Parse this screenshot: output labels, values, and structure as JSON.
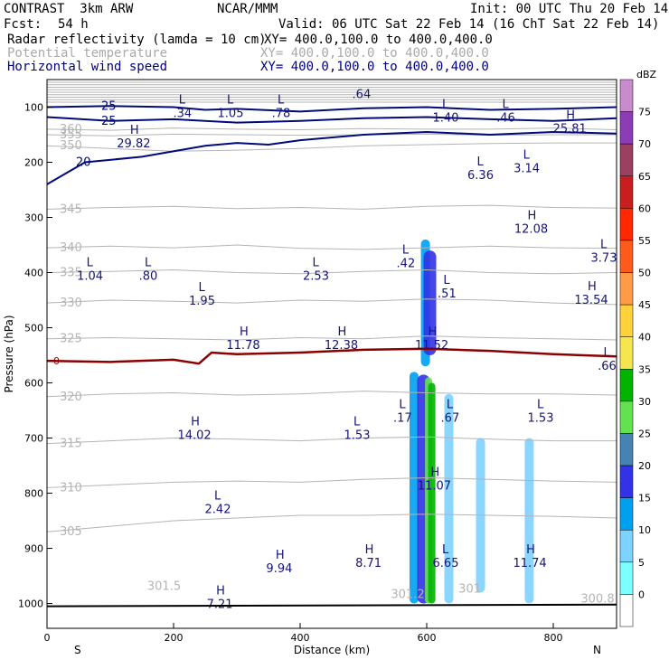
{
  "header": {
    "model": "CONTRAST  3km ARW",
    "org": "NCAR/MMM",
    "init": "Init: 00 UTC Thu 20 Feb 14",
    "fcst_label": "Fcst:",
    "fcst_value": "54 h",
    "valid": "Valid: 06 UTC Sat 22 Feb 14 (16 ChT Sat 22 Feb 14)",
    "field1": "Radar reflectivity (lamda = 10 cm)",
    "field1_xy": "XY= 400.0,100.0 to 400.0,400.0",
    "field2": "Potential temperature",
    "field2_xy": "XY= 400.0,100.0 to 400.0,400.0",
    "field3": "Horizontal wind speed",
    "field3_xy": "XY= 400.0,100.0 to 400.0,400.0"
  },
  "colors": {
    "theta": "#b4b4b4",
    "wind": "#000a78",
    "zero": "#8b0000",
    "label_blue": "#14147a"
  },
  "chart_data": {
    "type": "cross-section",
    "xlabel": "Distance (km)",
    "ylabel": "Pressure (hPa)",
    "xlim": [
      0,
      900
    ],
    "ylim": [
      1045,
      50
    ],
    "x_ticks": [
      0,
      200,
      400,
      600,
      800
    ],
    "x_tick_labels": [
      "0",
      "200",
      "400",
      "600",
      "800"
    ],
    "y_ticks": [
      100,
      200,
      300,
      400,
      500,
      600,
      700,
      800,
      900,
      1000
    ],
    "y_tick_labels": [
      "100",
      "200",
      "300",
      "400",
      "500",
      "600",
      "700",
      "800",
      "900",
      "1000"
    ],
    "end_labels": [
      "S",
      "N"
    ],
    "colorbar": {
      "unit": "dBZ",
      "levels": [
        "75",
        "70",
        "65",
        "60",
        "55",
        "50",
        "45",
        "40",
        "35",
        "30",
        "25",
        "20",
        "15",
        "10",
        "5",
        "0"
      ],
      "colors": [
        "#c88ccc",
        "#8c3cb4",
        "#9a4060",
        "#c81e1e",
        "#ff2800",
        "#ff5a1e",
        "#ff9b46",
        "#ffd23c",
        "#f5e650",
        "#00b400",
        "#64e150",
        "#4682b4",
        "#3232e6",
        "#00a0f0",
        "#7dd2ff",
        "#7dffff",
        "#ffffff"
      ]
    },
    "theta_contours": [
      {
        "label": "360",
        "p": [
          140,
          142,
          138,
          140,
          141,
          139,
          140,
          140,
          138,
          141
        ]
      },
      {
        "label": "355",
        "p": [
          150,
          152,
          149,
          150,
          151,
          150,
          149,
          151,
          150,
          150
        ]
      },
      {
        "label": "350",
        "p": [
          170,
          175,
          180,
          178,
          175,
          170,
          168,
          166,
          165,
          165
        ]
      },
      {
        "label": "345",
        "p": [
          285,
          282,
          280,
          284,
          282,
          285,
          280,
          278,
          282,
          283
        ]
      },
      {
        "label": "340",
        "p": [
          355,
          352,
          355,
          350,
          356,
          358,
          355,
          352,
          355,
          356
        ]
      },
      {
        "label": "335",
        "p": [
          400,
          398,
          395,
          400,
          402,
          398,
          395,
          400,
          402,
          400
        ]
      },
      {
        "label": "330",
        "p": [
          455,
          450,
          452,
          455,
          450,
          452,
          448,
          450,
          455,
          458
        ]
      },
      {
        "label": "325",
        "p": [
          520,
          518,
          520,
          522,
          518,
          520,
          515,
          518,
          520,
          522
        ]
      },
      {
        "label": "320",
        "p": [
          625,
          620,
          618,
          622,
          620,
          615,
          618,
          620,
          620,
          622
        ]
      },
      {
        "label": "315",
        "p": [
          710,
          705,
          700,
          702,
          705,
          700,
          698,
          702,
          705,
          705
        ]
      },
      {
        "label": "310",
        "p": [
          790,
          785,
          780,
          778,
          780,
          775,
          772,
          775,
          778,
          780
        ]
      },
      {
        "label": "305",
        "p": [
          870,
          860,
          850,
          845,
          840,
          840,
          838,
          840,
          842,
          845
        ]
      }
    ],
    "wind_contours": [
      {
        "label": "25",
        "x": [
          0,
          100,
          200,
          250,
          300,
          400,
          500,
          600,
          700,
          800,
          900
        ],
        "p": [
          100,
          98,
          100,
          105,
          103,
          108,
          102,
          100,
          105,
          103,
          100
        ]
      },
      {
        "label": "25",
        "x": [
          0,
          100,
          200,
          300,
          400,
          500,
          600,
          700,
          800,
          900
        ],
        "p": [
          118,
          125,
          122,
          128,
          125,
          120,
          118,
          122,
          125,
          120
        ]
      },
      {
        "label": "20",
        "x": [
          0,
          60,
          150,
          250,
          300,
          350,
          400,
          500,
          600,
          700,
          800,
          900
        ],
        "p": [
          240,
          200,
          190,
          170,
          165,
          168,
          160,
          150,
          145,
          150,
          145,
          148
        ]
      }
    ],
    "zero_contour": {
      "label": "0",
      "x": [
        0,
        100,
        200,
        240,
        260,
        300,
        400,
        500,
        600,
        700,
        800,
        900
      ],
      "p": [
        560,
        562,
        558,
        565,
        545,
        548,
        545,
        540,
        538,
        542,
        548,
        552
      ]
    },
    "reflectivity_columns": [
      {
        "x": 598,
        "p_top": 340,
        "p_bot": 570,
        "dbz": 10
      },
      {
        "x": 605,
        "p_top": 360,
        "p_bot": 550,
        "dbz": 15
      },
      {
        "x": 580,
        "p_top": 580,
        "p_bot": 1000,
        "dbz": 10
      },
      {
        "x": 595,
        "p_top": 585,
        "p_bot": 1000,
        "dbz": 15
      },
      {
        "x": 603,
        "p_top": 590,
        "p_bot": 1000,
        "dbz": 25
      },
      {
        "x": 608,
        "p_top": 600,
        "p_bot": 1000,
        "dbz": 30
      },
      {
        "x": 635,
        "p_top": 620,
        "p_bot": 1000,
        "dbz": 5
      },
      {
        "x": 685,
        "p_top": 700,
        "p_bot": 980,
        "dbz": 5
      },
      {
        "x": 762,
        "p_top": 700,
        "p_bot": 1000,
        "dbz": 5
      }
    ],
    "annotations": [
      {
        "kind": "L",
        "value": ".34",
        "x": 214,
        "p": 110
      },
      {
        "kind": "L",
        "value": "1.05",
        "x": 290,
        "p": 110
      },
      {
        "kind": "L",
        "value": ".78",
        "x": 370,
        "p": 110
      },
      {
        "kind": "",
        "value": ".64",
        "x": 497,
        "p": 75
      },
      {
        "kind": "L",
        "value": "1.40",
        "x": 630,
        "p": 118
      },
      {
        "kind": "L",
        "value": ".46",
        "x": 725,
        "p": 118
      },
      {
        "kind": "H",
        "value": "29.82",
        "x": 137,
        "p": 165
      },
      {
        "kind": "H",
        "value": "25.81",
        "x": 826,
        "p": 138
      },
      {
        "kind": "L",
        "value": "6.36",
        "x": 685,
        "p": 222
      },
      {
        "kind": "L",
        "value": "3.14",
        "x": 758,
        "p": 210
      },
      {
        "kind": "H",
        "value": "12.08",
        "x": 765,
        "p": 320
      },
      {
        "kind": "L",
        "value": "3.73",
        "x": 880,
        "p": 372
      },
      {
        "kind": "L",
        "value": "1.04",
        "x": 68,
        "p": 405
      },
      {
        "kind": "L",
        "value": ".80",
        "x": 160,
        "p": 405
      },
      {
        "kind": "L",
        "value": "1.95",
        "x": 245,
        "p": 450
      },
      {
        "kind": "L",
        "value": "2.53",
        "x": 425,
        "p": 405
      },
      {
        "kind": "L",
        "value": ".42",
        "x": 567,
        "p": 382
      },
      {
        "kind": "L",
        "value": ".51",
        "x": 632,
        "p": 437
      },
      {
        "kind": "H",
        "value": "13.54",
        "x": 860,
        "p": 448
      },
      {
        "kind": "H",
        "value": "11.78",
        "x": 310,
        "p": 530
      },
      {
        "kind": "H",
        "value": "12.38",
        "x": 465,
        "p": 530
      },
      {
        "kind": "H",
        "value": "11.52",
        "x": 608,
        "p": 530
      },
      {
        "kind": "L",
        "value": ".66",
        "x": 885,
        "p": 568
      },
      {
        "kind": "L",
        "value": ".17",
        "x": 562,
        "p": 662
      },
      {
        "kind": "L",
        "value": ".67",
        "x": 637,
        "p": 662
      },
      {
        "kind": "L",
        "value": "1.53",
        "x": 780,
        "p": 662
      },
      {
        "kind": "H",
        "value": "14.02",
        "x": 233,
        "p": 693
      },
      {
        "kind": "L",
        "value": "1.53",
        "x": 490,
        "p": 693
      },
      {
        "kind": "H",
        "value": "11.07",
        "x": 612,
        "p": 785
      },
      {
        "kind": "L",
        "value": "2.42",
        "x": 270,
        "p": 828
      },
      {
        "kind": "H",
        "value": "8.71",
        "x": 508,
        "p": 925
      },
      {
        "kind": "H",
        "value": "9.94",
        "x": 367,
        "p": 935
      },
      {
        "kind": "L",
        "value": "6.65",
        "x": 630,
        "p": 925
      },
      {
        "kind": "H",
        "value": "11.74",
        "x": 763,
        "p": 925
      },
      {
        "kind": "H",
        "value": "7.21",
        "x": 273,
        "p": 1000
      }
    ],
    "theta_labels": [
      {
        "value": "301.5",
        "x": 185,
        "p": 975
      },
      {
        "value": "301.2",
        "x": 570,
        "p": 990
      },
      {
        "value": "301",
        "x": 668,
        "p": 980
      },
      {
        "value": "300.8",
        "x": 870,
        "p": 998
      }
    ]
  }
}
